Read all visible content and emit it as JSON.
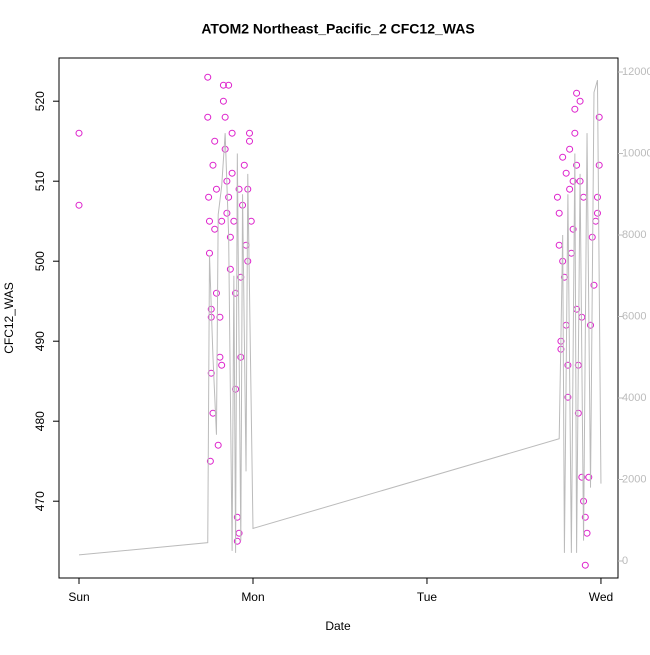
{
  "chart_data": {
    "type": "scatter",
    "title": "ATOM2 Northeast_Pacific_2 CFC12_WAS",
    "x_label": "Date",
    "y_label": "CFC12_WAS",
    "xlim": [
      -0.115,
      3.098
    ],
    "xticks": [
      {
        "value": 0,
        "label": "Sun"
      },
      {
        "value": 1,
        "label": "Mon"
      },
      {
        "value": 2,
        "label": "Tue"
      },
      {
        "value": 3,
        "label": "Wed"
      }
    ],
    "ylim": [
      460.4,
      525.4
    ],
    "yticks": [
      470,
      480,
      490,
      500,
      510,
      520
    ],
    "y2lim": [
      -417,
      12344
    ],
    "y2ticks": [
      0,
      2000,
      4000,
      6000,
      8000,
      10000,
      12000
    ],
    "series": [
      {
        "type": "scatter",
        "color": "#dd22cc",
        "x": [
          0,
          0,
          0.74,
          0.74,
          0.745,
          0.75,
          0.75,
          0.76,
          0.76,
          0.76,
          0.77,
          0.755,
          0.77,
          0.78,
          0.78,
          0.79,
          0.79,
          0.8,
          0.81,
          0.81,
          0.82,
          0.82,
          0.83,
          0.83,
          0.84,
          0.84,
          0.85,
          0.85,
          0.86,
          0.86,
          0.87,
          0.87,
          0.88,
          0.88,
          0.89,
          0.9,
          0.9,
          0.91,
          0.91,
          0.92,
          0.92,
          0.93,
          0.93,
          0.94,
          0.95,
          0.96,
          0.97,
          0.98,
          0.98,
          0.99,
          0.97,
          2.75,
          2.76,
          2.76,
          2.77,
          2.77,
          2.78,
          2.78,
          2.79,
          2.8,
          2.8,
          2.81,
          2.81,
          2.82,
          2.82,
          2.83,
          2.84,
          2.85,
          2.85,
          2.86,
          2.86,
          2.87,
          2.87,
          2.88,
          2.88,
          2.89,
          2.89,
          2.9,
          2.9,
          2.91,
          2.91,
          2.92,
          2.93,
          2.94,
          2.95,
          2.96,
          2.97,
          2.98,
          2.99,
          2.99,
          2.98,
          2.86,
          2.84
        ],
        "values": [
          516,
          507,
          523,
          518,
          508,
          505,
          501,
          494,
          493,
          486,
          481,
          475,
          512,
          515,
          504,
          496,
          509,
          477,
          488,
          493,
          487,
          505,
          522,
          520,
          518,
          514,
          510,
          506,
          522,
          508,
          503,
          499,
          511,
          516,
          505,
          496,
          484,
          468,
          465,
          466,
          509,
          488,
          498,
          507,
          512,
          502,
          509,
          516,
          515,
          505,
          500,
          508,
          506,
          502,
          490,
          489,
          513,
          500,
          498,
          511,
          492,
          483,
          487,
          509,
          514,
          501,
          504,
          519,
          516,
          512,
          494,
          481,
          487,
          520,
          510,
          493,
          473,
          508,
          470,
          468,
          462,
          466,
          473,
          492,
          503,
          497,
          505,
          508,
          518,
          512,
          506,
          521,
          510
        ]
      },
      {
        "type": "line",
        "color": "#bbbbbb",
        "axis": "y2",
        "x": [
          0,
          0.74,
          0.75,
          0.77,
          0.79,
          0.8,
          0.82,
          0.84,
          0.86,
          0.88,
          0.89,
          0.9,
          0.91,
          0.93,
          0.94,
          0.96,
          0.97,
          1.0,
          2.76,
          2.78,
          2.79,
          2.81,
          2.83,
          2.85,
          2.86,
          2.88,
          2.9,
          2.92,
          2.94,
          2.96,
          2.98,
          3.0
        ],
        "values": [
          150,
          450,
          7500,
          5000,
          3100,
          8500,
          9200,
          10500,
          8000,
          250,
          7000,
          200,
          10000,
          500,
          9000,
          2200,
          9500,
          800,
          3000,
          8000,
          200,
          9000,
          200,
          10000,
          200,
          9500,
          500,
          10500,
          1800,
          11500,
          11800,
          1900
        ]
      }
    ]
  }
}
